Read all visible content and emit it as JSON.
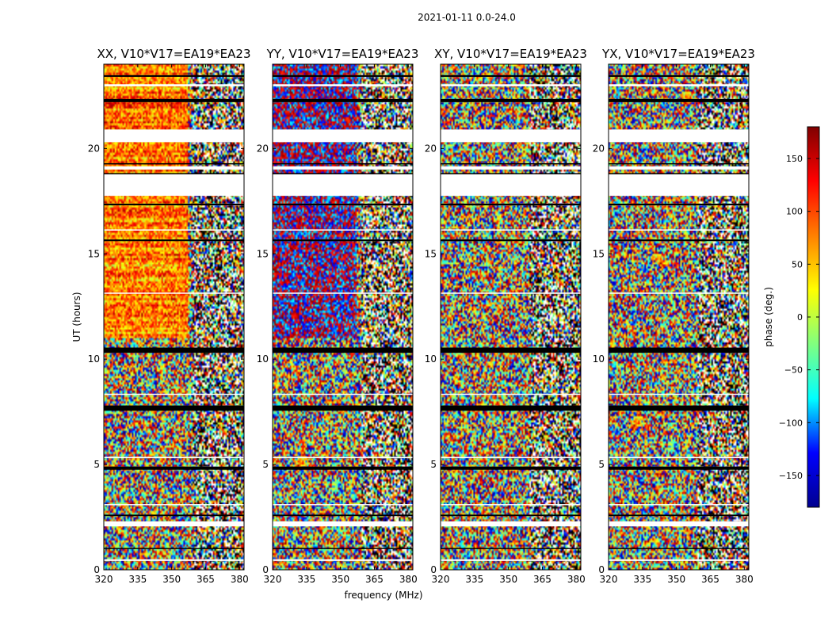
{
  "chart_data": {
    "type": "heatmap",
    "title": "2021-01-11 0.0-24.0",
    "xlabel": "frequency (MHz)",
    "ylabel": "UT (hours)",
    "xlim": [
      320,
      382
    ],
    "ylim": [
      0,
      24
    ],
    "x_ticks": [
      320,
      335,
      350,
      365,
      380
    ],
    "y_ticks": [
      0,
      5,
      10,
      15,
      20
    ],
    "panels": [
      {
        "title": "XX, V10*V17=EA19*EA23",
        "mode": "warm"
      },
      {
        "title": "YY, V10*V17=EA19*EA23",
        "mode": "mixed"
      },
      {
        "title": "XY, V10*V17=EA19*EA23",
        "mode": "noise"
      },
      {
        "title": "YX, V10*V17=EA19*EA23",
        "mode": "noise"
      }
    ],
    "flagged_ut_ranges": [
      [
        0.42,
        0.5
      ],
      [
        1.0,
        1.04
      ],
      [
        2.06,
        2.3
      ],
      [
        2.55,
        2.62
      ],
      [
        3.08,
        3.12
      ],
      [
        4.75,
        4.9
      ],
      [
        5.3,
        5.36
      ],
      [
        7.55,
        7.8
      ],
      [
        8.3,
        8.36
      ],
      [
        10.3,
        10.55
      ],
      [
        13.1,
        13.16
      ],
      [
        15.6,
        15.68
      ],
      [
        16.1,
        16.16
      ],
      [
        17.3,
        17.38
      ],
      [
        17.75,
        18.6
      ],
      [
        18.6,
        18.8
      ],
      [
        19.0,
        19.15
      ],
      [
        19.25,
        19.3
      ],
      [
        20.3,
        20.9
      ],
      [
        22.2,
        22.35
      ],
      [
        22.95,
        23.05
      ],
      [
        23.4,
        23.48
      ]
    ],
    "blank_ut_range": [
      17.85,
      18.8
    ],
    "colorbar": {
      "label": "phase (deg.)",
      "range": [
        -180,
        180
      ],
      "ticks": [
        150,
        100,
        50,
        0,
        -50,
        -100,
        -150
      ],
      "tick_labels": [
        "150",
        "100",
        "50",
        "0",
        "−50",
        "−100",
        "−150"
      ],
      "colormap": [
        "#00008f",
        "#0000ff",
        "#00ffff",
        "#80ff80",
        "#ffff00",
        "#ff8000",
        "#ff0000",
        "#800000"
      ]
    }
  }
}
